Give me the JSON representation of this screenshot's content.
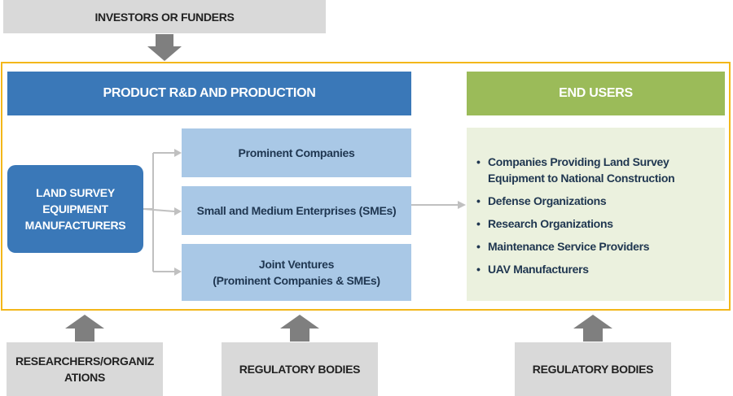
{
  "investors": "INVESTORS OR FUNDERS",
  "rnd_header": "PRODUCT R&D AND PRODUCTION",
  "end_users_header": "END USERS",
  "manufacturers": "LAND SURVEY EQUIPMENT MANUFACTURERS",
  "segments": [
    "Prominent Companies",
    "Small and Medium Enterprises (SMEs)",
    "Joint Ventures\n(Prominent Companies & SMEs)"
  ],
  "end_users": [
    "Companies Providing Land Survey Equipment to National Construction",
    "Defense Organizations",
    "Research Organizations",
    "Maintenance Service Providers",
    "UAV Manufacturers"
  ],
  "bottom": [
    "RESEARCHERS/ORGANIZ ATIONS",
    "REGULATORY BODIES",
    "REGULATORY BODIES"
  ],
  "colors": {
    "frame": "#f3b71a",
    "rnd": "#3a78b8",
    "end_users": "#9bbb59",
    "gray_arrow": "#7f7f7f"
  }
}
